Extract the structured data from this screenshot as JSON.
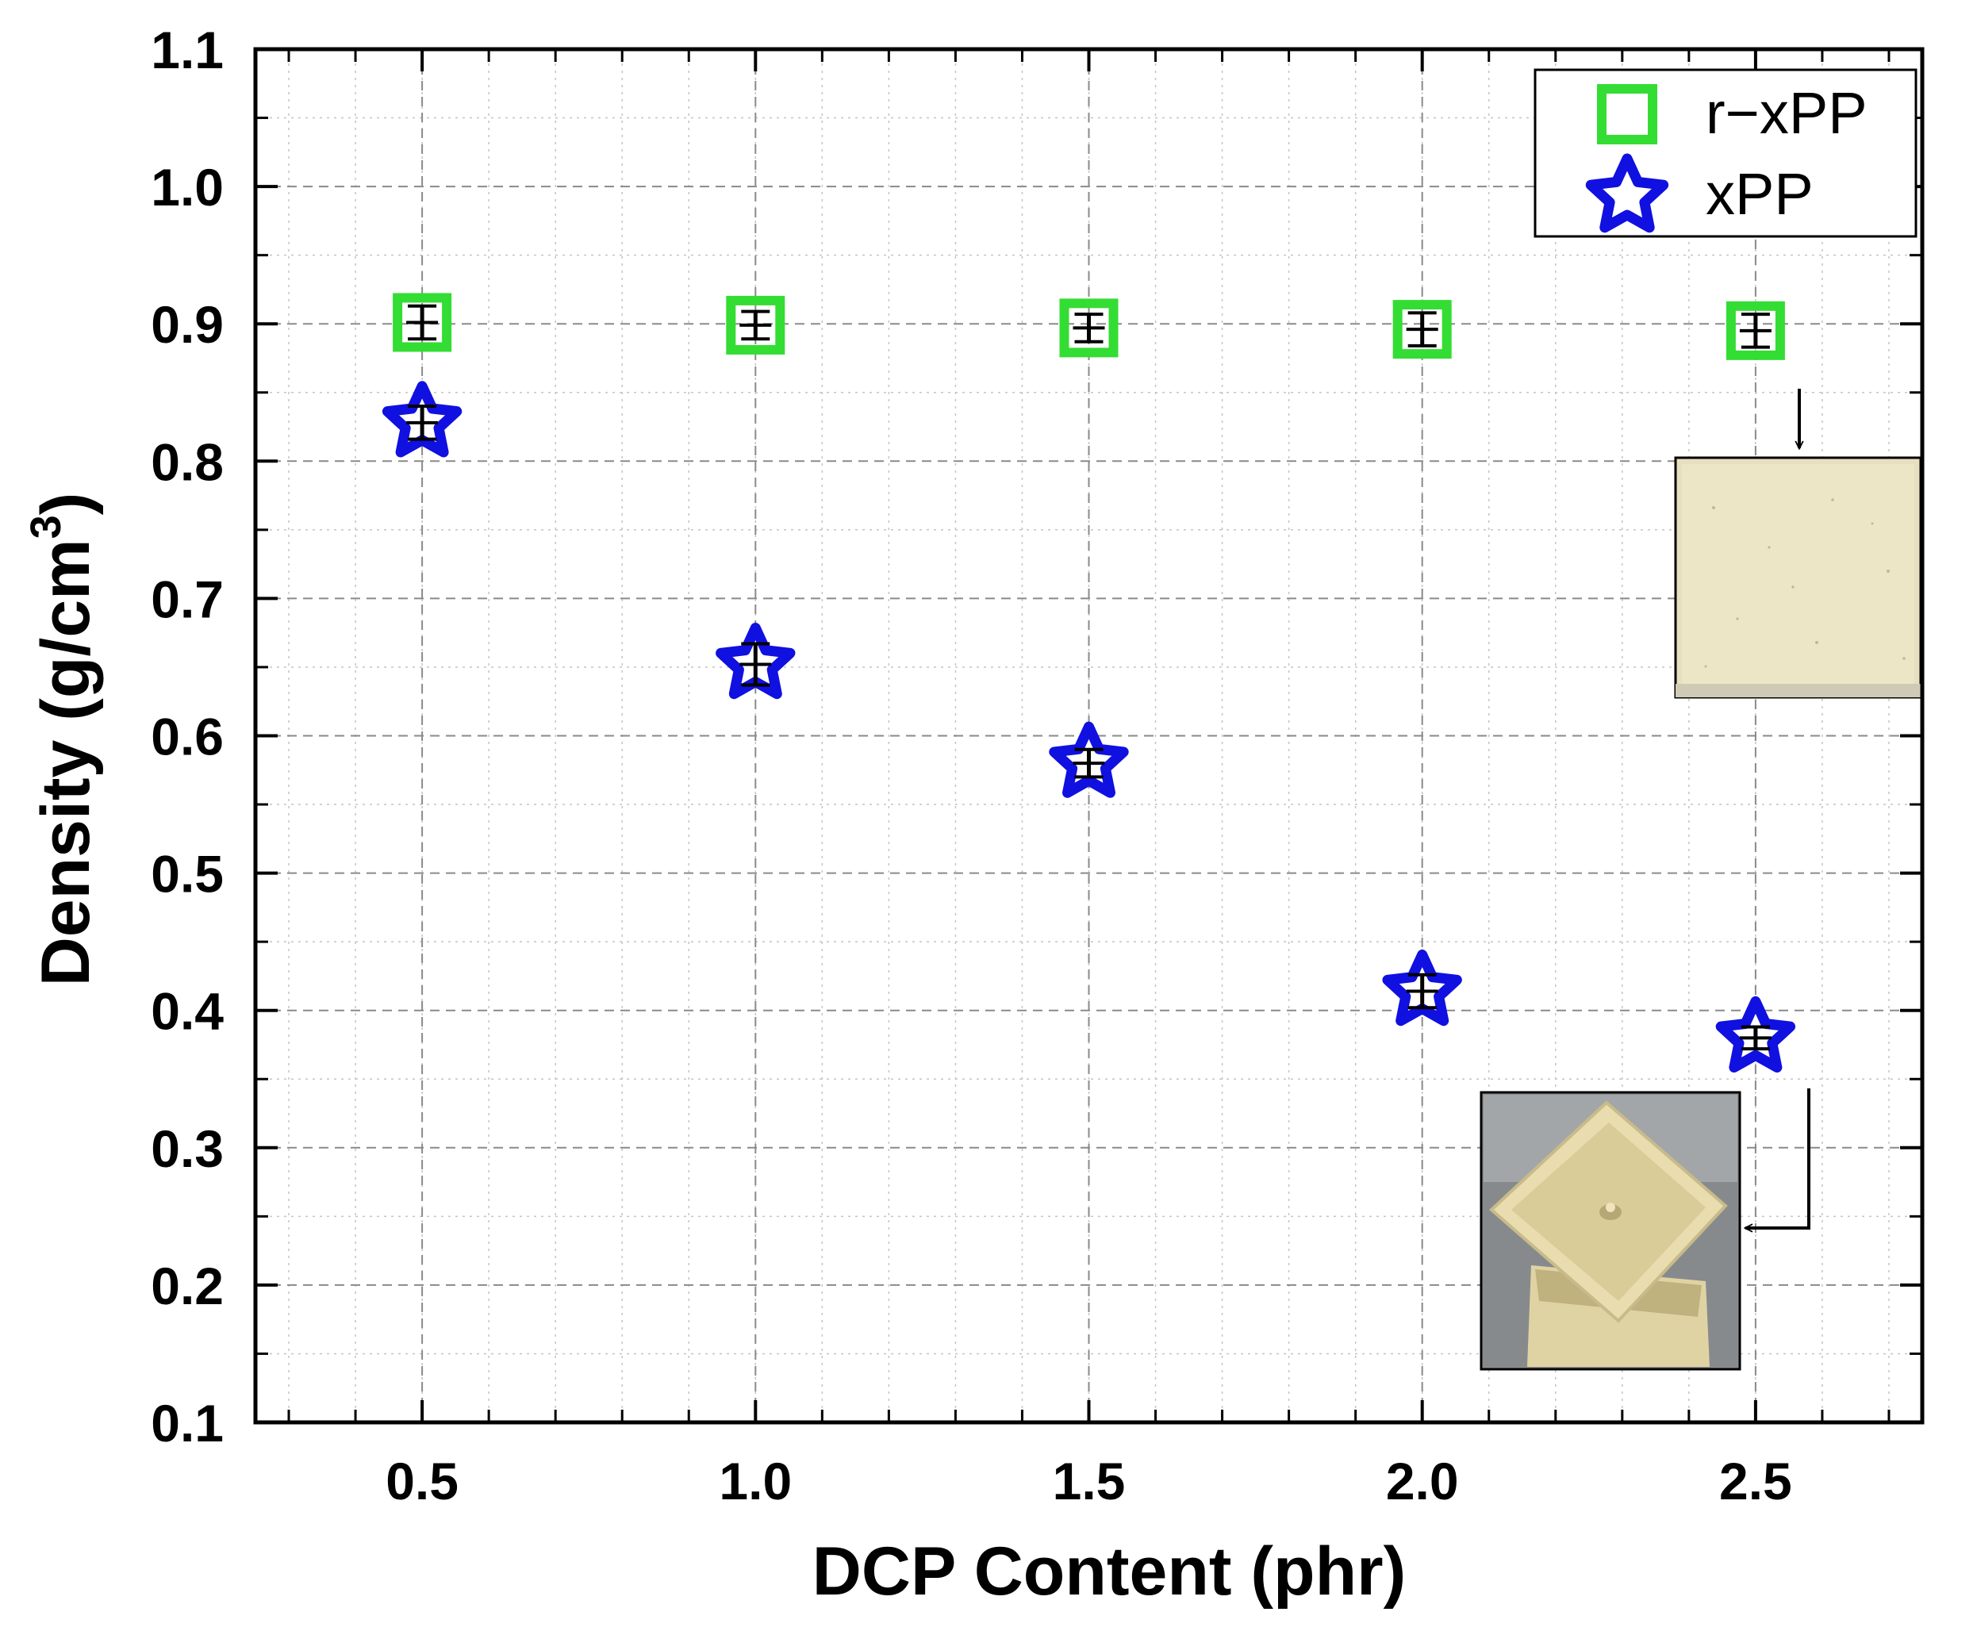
{
  "chart_data": {
    "type": "scatter",
    "xlabel": "DCP Content (phr)",
    "ylabel_main": "Density (g/cm",
    "ylabel_sup": "3",
    "ylabel_close": ")",
    "xlim": [
      0.25,
      2.75
    ],
    "ylim": [
      0.1,
      1.1
    ],
    "x_ticks": [
      0.5,
      1.0,
      1.5,
      2.0,
      2.5
    ],
    "x_tick_labels": [
      "0.5",
      "1.0",
      "1.5",
      "2.0",
      "2.5"
    ],
    "y_ticks": [
      0.1,
      0.2,
      0.3,
      0.4,
      0.5,
      0.6,
      0.7,
      0.8,
      0.9,
      1.0,
      1.1
    ],
    "y_tick_labels": [
      "0.1",
      "0.2",
      "0.3",
      "0.4",
      "0.5",
      "0.6",
      "0.7",
      "0.8",
      "0.9",
      "1.0",
      "1.1"
    ],
    "grid": true,
    "legend_position": "top-right",
    "series": [
      {
        "name": "r−xPP",
        "marker": "open-square",
        "color": "#33dd33",
        "x": [
          0.5,
          1.0,
          1.5,
          2.0,
          2.5
        ],
        "y": [
          0.901,
          0.899,
          0.897,
          0.896,
          0.895
        ],
        "err": [
          0.012,
          0.01,
          0.01,
          0.012,
          0.012
        ]
      },
      {
        "name": "xPP",
        "marker": "open-star",
        "color": "#1010e0",
        "x": [
          0.5,
          1.0,
          1.5,
          2.0,
          2.5
        ],
        "y": [
          0.828,
          0.652,
          0.58,
          0.414,
          0.38
        ],
        "err": [
          0.012,
          0.015,
          0.01,
          0.012,
          0.008
        ]
      }
    ],
    "insets": [
      {
        "name": "r-xPP sample photo",
        "points_to": {
          "series": 0,
          "index": 4
        },
        "photo": "flat beige plaque"
      },
      {
        "name": "xPP sample photo",
        "points_to": {
          "series": 1,
          "index": 4
        },
        "photo": "foamed beige square boxes"
      }
    ]
  }
}
